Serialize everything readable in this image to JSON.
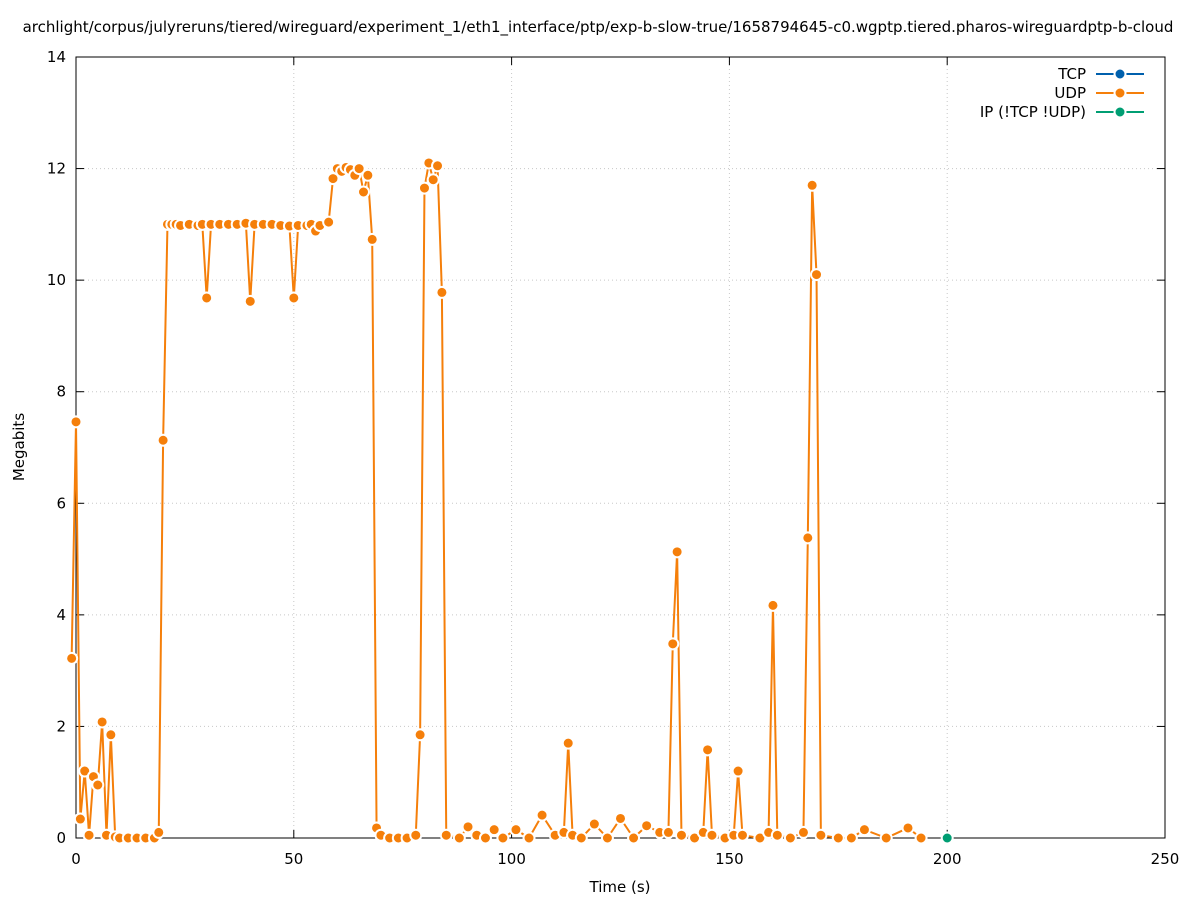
{
  "chart_data": {
    "type": "line",
    "title": "archlight/corpus/julyreruns/tiered/wireguard/experiment_1/eth1_interface/ptp/exp-b-slow-true/1658794645-c0.wgptp.tiered.pharos-wireguardptp-b-cloud",
    "xlabel": "Time (s)",
    "ylabel": "Megabits",
    "xlim": [
      0,
      250
    ],
    "ylim": [
      0,
      14
    ],
    "x_ticks": [
      0,
      50,
      100,
      150,
      200,
      250
    ],
    "y_ticks": [
      0,
      2,
      4,
      6,
      8,
      10,
      12,
      14
    ],
    "grid": true,
    "legend_position": "top-right",
    "series": [
      {
        "name": "TCP",
        "color": "#0060ad",
        "points": []
      },
      {
        "name": "UDP",
        "color": "#f57f0a",
        "points": [
          [
            -1,
            3.22
          ],
          [
            0,
            7.46
          ],
          [
            1,
            0.34
          ],
          [
            2,
            1.2
          ],
          [
            3,
            0.05
          ],
          [
            4,
            1.1
          ],
          [
            5,
            0.95
          ],
          [
            6,
            2.08
          ],
          [
            7,
            0.05
          ],
          [
            8,
            1.85
          ],
          [
            9,
            0.02
          ],
          [
            10,
            0
          ],
          [
            12,
            0
          ],
          [
            14,
            0
          ],
          [
            16,
            0
          ],
          [
            18,
            0
          ],
          [
            19,
            0.1
          ],
          [
            20,
            7.13
          ],
          [
            21,
            11.0
          ],
          [
            22,
            11.0
          ],
          [
            23,
            11.0
          ],
          [
            24,
            10.98
          ],
          [
            26,
            11.0
          ],
          [
            28,
            10.98
          ],
          [
            29,
            11.0
          ],
          [
            30,
            9.68
          ],
          [
            31,
            11.0
          ],
          [
            33,
            11.0
          ],
          [
            35,
            11.0
          ],
          [
            37,
            11.0
          ],
          [
            39,
            11.02
          ],
          [
            40,
            9.62
          ],
          [
            41,
            11.0
          ],
          [
            43,
            11.0
          ],
          [
            45,
            11.0
          ],
          [
            47,
            10.98
          ],
          [
            49,
            10.97
          ],
          [
            50,
            9.68
          ],
          [
            51,
            10.98
          ],
          [
            53,
            10.98
          ],
          [
            54,
            11.0
          ],
          [
            55,
            10.88
          ],
          [
            56,
            10.98
          ],
          [
            58,
            11.04
          ],
          [
            59,
            11.82
          ],
          [
            60,
            12.0
          ],
          [
            61,
            11.95
          ],
          [
            62,
            12.02
          ],
          [
            63,
            11.98
          ],
          [
            64,
            11.88
          ],
          [
            65,
            12.0
          ],
          [
            66,
            11.58
          ],
          [
            67,
            11.88
          ],
          [
            68,
            10.73
          ],
          [
            69,
            0.18
          ],
          [
            70,
            0.05
          ],
          [
            72,
            0
          ],
          [
            74,
            0
          ],
          [
            76,
            0
          ],
          [
            78,
            0.05
          ],
          [
            79,
            1.85
          ],
          [
            80,
            11.65
          ],
          [
            81,
            12.1
          ],
          [
            82,
            11.8
          ],
          [
            83,
            12.05
          ],
          [
            84,
            9.78
          ],
          [
            85,
            0.05
          ],
          [
            88,
            0
          ],
          [
            90,
            0.2
          ],
          [
            92,
            0.05
          ],
          [
            94,
            0
          ],
          [
            96,
            0.15
          ],
          [
            98,
            0
          ],
          [
            101,
            0.15
          ],
          [
            104,
            0
          ],
          [
            107,
            0.41
          ],
          [
            110,
            0.05
          ],
          [
            112,
            0.1
          ],
          [
            113,
            1.7
          ],
          [
            114,
            0.05
          ],
          [
            116,
            0
          ],
          [
            119,
            0.25
          ],
          [
            122,
            0
          ],
          [
            125,
            0.35
          ],
          [
            128,
            0
          ],
          [
            131,
            0.22
          ],
          [
            134,
            0.1
          ],
          [
            136,
            0.1
          ],
          [
            137,
            3.48
          ],
          [
            138,
            5.13
          ],
          [
            139,
            0.05
          ],
          [
            142,
            0
          ],
          [
            144,
            0.1
          ],
          [
            145,
            1.58
          ],
          [
            146,
            0.05
          ],
          [
            149,
            0
          ],
          [
            151,
            0.05
          ],
          [
            152,
            1.2
          ],
          [
            153,
            0.05
          ],
          [
            157,
            0
          ],
          [
            159,
            0.1
          ],
          [
            160,
            4.17
          ],
          [
            161,
            0.05
          ],
          [
            164,
            0
          ],
          [
            167,
            0.1
          ],
          [
            168,
            5.38
          ],
          [
            169,
            11.7
          ],
          [
            170,
            10.1
          ],
          [
            171,
            0.05
          ],
          [
            175,
            0
          ],
          [
            178,
            0
          ],
          [
            181,
            0.15
          ],
          [
            186,
            0
          ],
          [
            191,
            0.18
          ],
          [
            194,
            0
          ]
        ]
      },
      {
        "name": "IP (!TCP  !UDP)",
        "color": "#009e73",
        "points": [
          [
            200,
            0
          ]
        ]
      }
    ]
  }
}
